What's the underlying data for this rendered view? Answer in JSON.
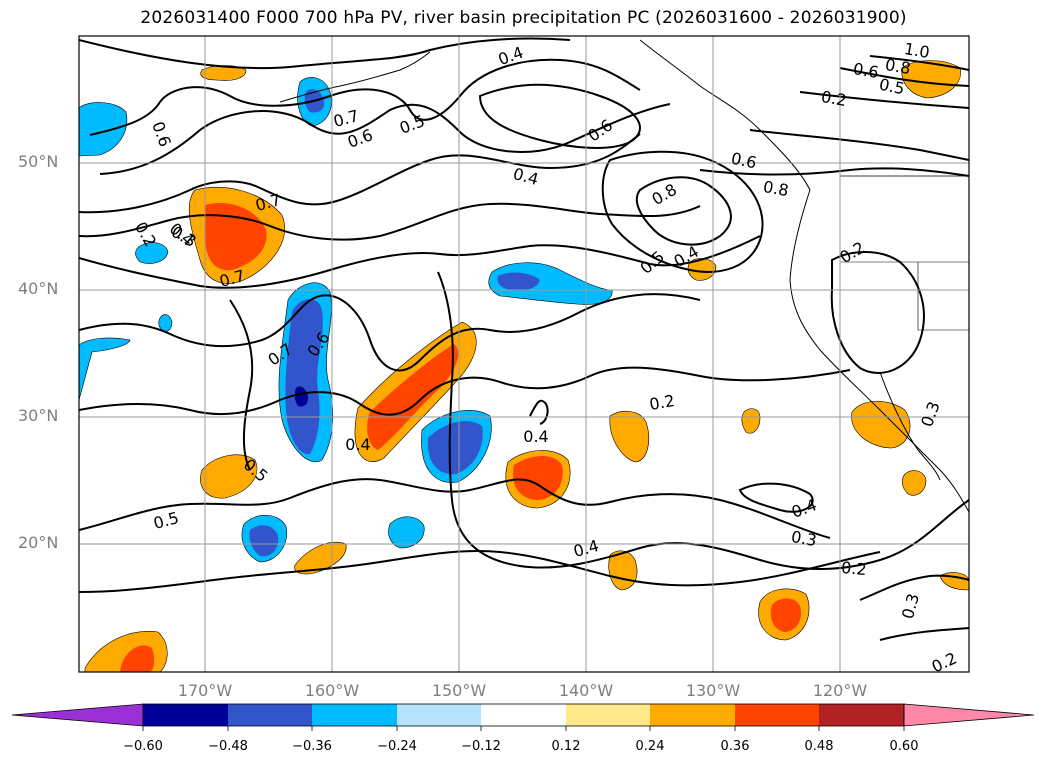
{
  "title": "2026031400 F000 700 hPa PV, river basin precipitation PC (2026031600 - 2026031900)",
  "lat_labels": [
    "50°N",
    "40°N",
    "30°N",
    "20°N"
  ],
  "lon_labels": [
    "170°W",
    "160°W",
    "150°W",
    "140°W",
    "130°W",
    "120°W"
  ],
  "colorbar": {
    "ticks": [
      "−0.60",
      "−0.48",
      "−0.36",
      "−0.24",
      "−0.12",
      "0.12",
      "0.24",
      "0.36",
      "0.48",
      "0.60"
    ],
    "colors": [
      "#9b30d6",
      "#000099",
      "#3355cc",
      "#00bbff",
      "#b3e3ff",
      "#ffffff",
      "#ffe98a",
      "#ffaa00",
      "#ff4400",
      "#b22222",
      "#ff88aa"
    ]
  },
  "contour_labels": [
    "0.4",
    "1.0",
    "0.8",
    "0.6",
    "0.5",
    "0.2",
    "0.7",
    "0.6",
    "0.5",
    "0.4",
    "0.6",
    "0.7",
    "0.8",
    "0.6",
    "0.8",
    "0.4",
    "0.5",
    "0.4",
    "0.2",
    "0.3",
    "0.2",
    "0.7",
    "0.6",
    "0.4",
    "0.4",
    "0.5",
    "0.5",
    "0.2",
    "0.4",
    "0.3",
    "0.2",
    "0.3",
    "0.2",
    "0.3",
    "0.4",
    "0.6",
    "0.7"
  ]
}
